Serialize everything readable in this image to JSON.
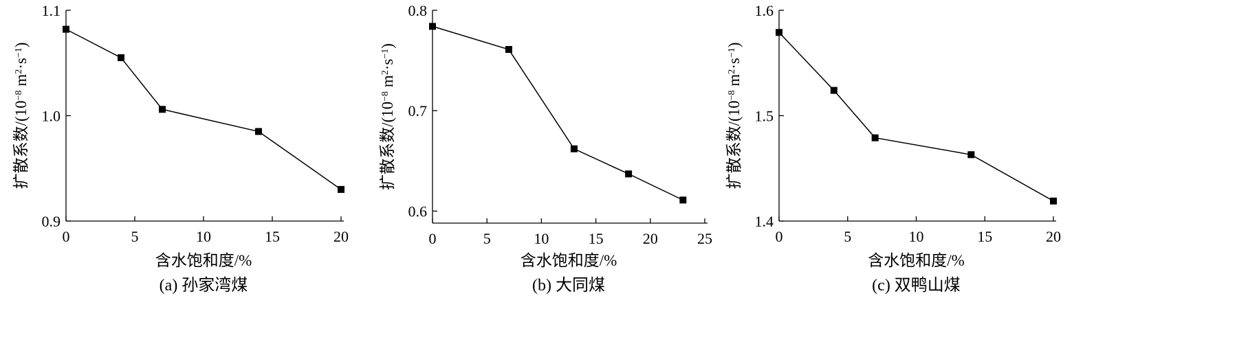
{
  "chart_data": [
    {
      "type": "line",
      "caption": "(a)  孙家湾煤",
      "xlabel": "含水饱和度/%",
      "ylabel": "扩散系数/(10",
      "ylabel_exp": "−8",
      "ylabel_unit1": " m",
      "ylabel_exp2": "2",
      "ylabel_dot": "·s",
      "ylabel_exp3": "−1",
      "ylabel_close": ")",
      "xlim": [
        0,
        20
      ],
      "ylim": [
        0.9,
        1.1
      ],
      "xticks": [
        0,
        5,
        10,
        15,
        20
      ],
      "xtick_labels": [
        "0",
        "5",
        "10",
        "15",
        "20"
      ],
      "yticks": [
        0.9,
        1.0,
        1.1
      ],
      "ytick_labels": [
        "0.9",
        "1.0",
        "1.1"
      ],
      "x": [
        0,
        4,
        7,
        14,
        20
      ],
      "y": [
        1.082,
        1.055,
        1.006,
        0.985,
        0.93
      ]
    },
    {
      "type": "line",
      "caption": "(b)  大同煤",
      "xlabel": "含水饱和度/%",
      "ylabel": "扩散系数/(10",
      "ylabel_exp": "−8",
      "ylabel_unit1": " m",
      "ylabel_exp2": "2",
      "ylabel_dot": "·s",
      "ylabel_exp3": "−1",
      "ylabel_close": ")",
      "xlim": [
        0,
        25
      ],
      "ylim": [
        0.588,
        0.8
      ],
      "xticks": [
        0,
        5,
        10,
        15,
        20,
        25
      ],
      "xtick_labels": [
        "0",
        "5",
        "10",
        "15",
        "20",
        "25"
      ],
      "yticks": [
        0.6,
        0.7,
        0.8
      ],
      "ytick_labels": [
        "0.6",
        "0.7",
        "0.8"
      ],
      "x": [
        0,
        7,
        13,
        18,
        23
      ],
      "y": [
        0.784,
        0.761,
        0.662,
        0.637,
        0.611
      ]
    },
    {
      "type": "line",
      "caption": "(c)  双鸭山煤",
      "xlabel": "含水饱和度/%",
      "ylabel": "扩散系数/(10",
      "ylabel_exp": "−8",
      "ylabel_unit1": " m",
      "ylabel_exp2": "2",
      "ylabel_dot": "·s",
      "ylabel_exp3": "−1",
      "ylabel_close": ")",
      "xlim": [
        0,
        20
      ],
      "ylim": [
        1.4,
        1.6
      ],
      "xticks": [
        0,
        5,
        10,
        15,
        20
      ],
      "xtick_labels": [
        "0",
        "5",
        "10",
        "15",
        "20"
      ],
      "yticks": [
        1.4,
        1.5,
        1.6
      ],
      "ytick_labels": [
        "1.4",
        "1.5",
        "1.6"
      ],
      "x": [
        0,
        4,
        7,
        14,
        20
      ],
      "y": [
        1.579,
        1.524,
        1.479,
        1.463,
        1.419
      ]
    }
  ]
}
